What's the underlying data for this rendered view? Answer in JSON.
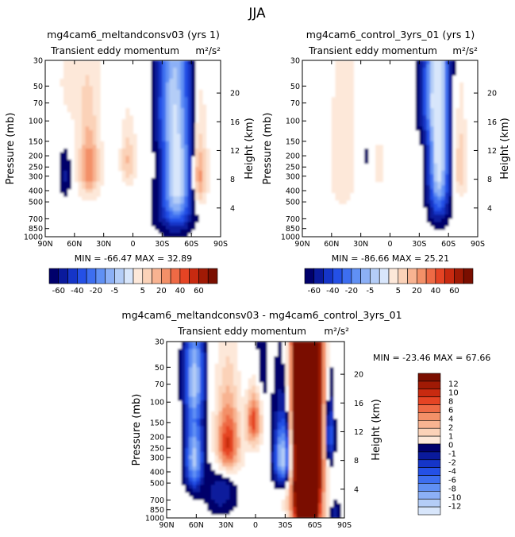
{
  "figure": {
    "title": "JJA"
  },
  "colors": {
    "neg": [
      "#00006b",
      "#0a1a9c",
      "#1535c8",
      "#2450e6",
      "#3d6ef0",
      "#6090f4",
      "#8cb0f6",
      "#b4cdf7",
      "#d8e6fb"
    ],
    "pos": [
      "#fde8d9",
      "#fbd2b8",
      "#f8b391",
      "#f39068",
      "#ee6a45",
      "#e54424",
      "#c82a10",
      "#a01a05",
      "#7a0e00"
    ]
  },
  "panels": [
    {
      "id": "panel-left",
      "title": "mg4cam6_meltandconsv03 (yrs 1)",
      "subtitle": "Transient eddy momentum",
      "units": "m²/s²",
      "stats": "MIN = -66.47   MAX =  32.89",
      "ylabel": "Pressure (mb)",
      "y2label": "Height (km)"
    },
    {
      "id": "panel-right",
      "title": "mg4cam6_control_3yrs_01 (yrs 1)",
      "subtitle": "Transient eddy momentum",
      "units": "m²/s²",
      "stats": "MIN = -86.66   MAX =  25.21",
      "ylabel": "Pressure (mb)",
      "y2label": "Height (km)"
    },
    {
      "id": "panel-diff",
      "title": "mg4cam6_meltandconsv03 - mg4cam6_control_3yrs_01",
      "subtitle": "Transient eddy momentum",
      "units": "m²/s²",
      "stats": "MIN = -23.46   MAX =  67.66",
      "ylabel": "Pressure (mb)",
      "y2label": "Height (km)"
    }
  ],
  "chart_data": [
    {
      "type": "heatmap",
      "panel": "panel-left",
      "x": [
        "90N",
        "60N",
        "30N",
        "0",
        "30S",
        "60S",
        "90S"
      ],
      "y_pressure_mb": [
        "30",
        "50",
        "70",
        "100",
        "150",
        "200",
        "250",
        "300",
        "400",
        "500",
        "700",
        "850",
        "1000"
      ],
      "y_height_km": [
        "20",
        "16",
        "12",
        "8",
        "4"
      ],
      "min": -66.47,
      "max": 32.89,
      "features": [
        {
          "lat": -45,
          "p": 300,
          "value": -66,
          "sx": 10,
          "sp": 280
        },
        {
          "lat": 45,
          "p": 250,
          "value": 32,
          "sx": 7,
          "sp": 120
        },
        {
          "lat": -68,
          "p": 300,
          "value": 30,
          "sx": 5,
          "sp": 140
        },
        {
          "lat": 5,
          "p": 220,
          "value": 18,
          "sx": 5,
          "sp": 80
        },
        {
          "lat": 70,
          "p": 300,
          "value": -12,
          "sx": 4,
          "sp": 90
        },
        {
          "lat": -35,
          "p": 70,
          "value": -18,
          "sx": 9,
          "sp": 60
        },
        {
          "lat": 60,
          "p": 50,
          "value": 6,
          "sx": 15,
          "sp": 40
        },
        {
          "lat": -40,
          "p": 700,
          "value": -8,
          "sx": 15,
          "sp": 200
        }
      ]
    },
    {
      "type": "heatmap",
      "panel": "panel-right",
      "x": [
        "90N",
        "60N",
        "30N",
        "0",
        "30S",
        "60S",
        "90S"
      ],
      "y_pressure_mb": [
        "30",
        "50",
        "70",
        "100",
        "150",
        "200",
        "250",
        "300",
        "400",
        "500",
        "700",
        "850",
        "1000"
      ],
      "y_height_km": [
        "20",
        "16",
        "12",
        "8",
        "4"
      ],
      "min": -86.66,
      "max": 25.21,
      "features": [
        {
          "lat": -50,
          "p": 180,
          "value": -86,
          "sx": 7,
          "sp": 300
        },
        {
          "lat": -40,
          "p": 60,
          "value": -30,
          "sx": 8,
          "sp": 50
        },
        {
          "lat": 48,
          "p": 220,
          "value": 10,
          "sx": 10,
          "sp": 260
        },
        {
          "lat": -72,
          "p": 250,
          "value": 24,
          "sx": 4,
          "sp": 120
        },
        {
          "lat": 12,
          "p": 250,
          "value": 14,
          "sx": 4,
          "sp": 70
        },
        {
          "lat": 25,
          "p": 200,
          "value": -6,
          "sx": 6,
          "sp": 120
        },
        {
          "lat": 70,
          "p": 400,
          "value": 4,
          "sx": 6,
          "sp": 200
        }
      ]
    },
    {
      "type": "heatmap",
      "panel": "panel-diff",
      "x": [
        "90N",
        "60N",
        "30N",
        "0",
        "30S",
        "60S",
        "90S"
      ],
      "y_pressure_mb": [
        "30",
        "50",
        "70",
        "100",
        "150",
        "200",
        "250",
        "300",
        "400",
        "500",
        "700",
        "850",
        "1000"
      ],
      "y_height_km": [
        "20",
        "16",
        "12",
        "8",
        "4"
      ],
      "min": -23.46,
      "max": 67.66,
      "features": [
        {
          "lat": -52,
          "p": 120,
          "value": 67,
          "sx": 9,
          "sp": 900
        },
        {
          "lat": -28,
          "p": 300,
          "value": -23,
          "sx": 6,
          "sp": 130
        },
        {
          "lat": 62,
          "p": 300,
          "value": -20,
          "sx": 6,
          "sp": 160
        },
        {
          "lat": 62,
          "p": 60,
          "value": -14,
          "sx": 7,
          "sp": 40
        },
        {
          "lat": 28,
          "p": 230,
          "value": 18,
          "sx": 8,
          "sp": 110
        },
        {
          "lat": 2,
          "p": 140,
          "value": 16,
          "sx": 5,
          "sp": 60
        },
        {
          "lat": 35,
          "p": 600,
          "value": -6,
          "sx": 10,
          "sp": 200
        },
        {
          "lat": -75,
          "p": 200,
          "value": -14,
          "sx": 3,
          "sp": 90
        },
        {
          "lat": 0,
          "p": 60,
          "value": -5,
          "sx": 8,
          "sp": 40
        },
        {
          "lat": -80,
          "p": 900,
          "value": -6,
          "sx": 4,
          "sp": 120
        }
      ]
    }
  ],
  "legends": [
    {
      "id": "legend-left",
      "labels": [
        "-60",
        "-40",
        "-20",
        "-5",
        "5",
        "20",
        "40",
        "60"
      ]
    },
    {
      "id": "legend-right",
      "labels": [
        "-60",
        "-40",
        "-20",
        "-5",
        "5",
        "20",
        "40",
        "60"
      ]
    },
    {
      "id": "legend-diff",
      "labels": [
        "12",
        "10",
        "8",
        "6",
        "4",
        "2",
        "1",
        "0",
        "-1",
        "-2",
        "-4",
        "-6",
        "-8",
        "-10",
        "-12"
      ]
    }
  ]
}
